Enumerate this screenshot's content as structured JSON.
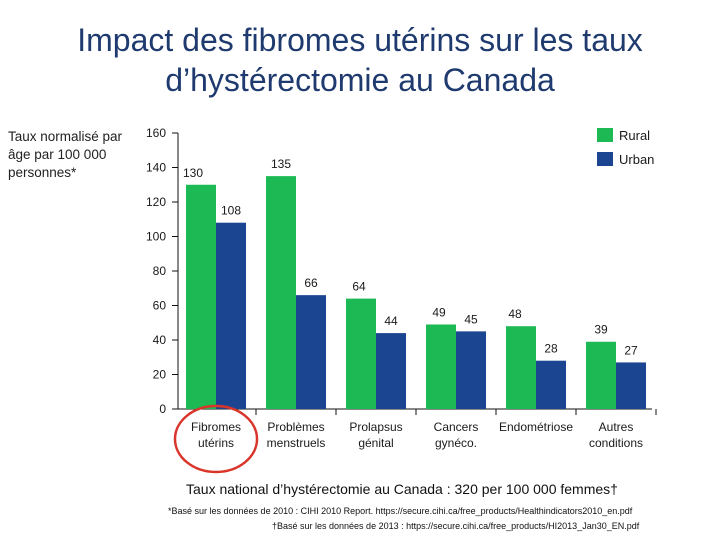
{
  "title_line1": "Impact des fibromes utérins sur les taux",
  "title_line2": "d’hystérectomie au Canada",
  "footnote_national": "Taux national d’hystérectomie au Canada : 320 per 100 000 femmes†",
  "footnote_1": "*Basé sur les données de 2010 : CIHI 2010 Report. https://secure.cihi.ca/free_products/Healthindicators2010_en.pdf",
  "footnote_2": "†Basé sur les données de 2013 : https://secure.cihi.ca/free_products/HI2013_Jan30_EN.pdf",
  "colors": {
    "rural": "#1db954",
    "urban": "#1c4591",
    "highlight": "#d9352b",
    "title": "#1f3a6e"
  },
  "chart_data": {
    "type": "bar",
    "ylabel": "Taux normalisé par âge par 100 000 personnes*",
    "ylim": [
      0,
      160
    ],
    "yticks": [
      0,
      20,
      40,
      60,
      80,
      100,
      120,
      140,
      160
    ],
    "categories": [
      [
        "Fibromes",
        "utérins"
      ],
      [
        "Problèmes",
        "menstruels"
      ],
      [
        "Prolapsus",
        "génital"
      ],
      [
        "Cancers",
        "gynéco."
      ],
      [
        "Endométriose"
      ],
      [
        "Autres",
        "conditions"
      ]
    ],
    "series": [
      {
        "name": "Rural",
        "values": [
          130,
          135,
          64,
          49,
          48,
          39
        ]
      },
      {
        "name": "Urban",
        "values": [
          108,
          66,
          44,
          45,
          28,
          27
        ]
      }
    ],
    "highlighted_category": 0,
    "legend_position": "top-right",
    "grid": false
  }
}
